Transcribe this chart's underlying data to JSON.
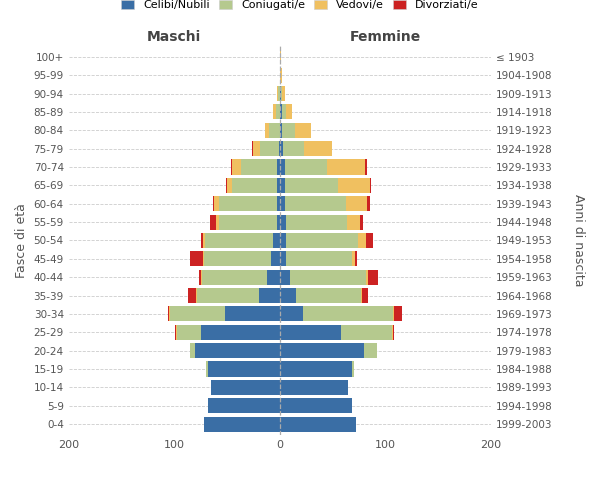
{
  "age_groups_bottom_to_top": [
    "0-4",
    "5-9",
    "10-14",
    "15-19",
    "20-24",
    "25-29",
    "30-34",
    "35-39",
    "40-44",
    "45-49",
    "50-54",
    "55-59",
    "60-64",
    "65-69",
    "70-74",
    "75-79",
    "80-84",
    "85-89",
    "90-94",
    "95-99",
    "100+"
  ],
  "birth_years_bottom_to_top": [
    "1999-2003",
    "1994-1998",
    "1989-1993",
    "1984-1988",
    "1979-1983",
    "1974-1978",
    "1969-1973",
    "1964-1968",
    "1959-1963",
    "1954-1958",
    "1949-1953",
    "1944-1948",
    "1939-1943",
    "1934-1938",
    "1929-1933",
    "1924-1928",
    "1919-1923",
    "1914-1918",
    "1909-1913",
    "1904-1908",
    "≤ 1903"
  ],
  "male_celibi": [
    72,
    68,
    65,
    68,
    80,
    75,
    52,
    20,
    12,
    8,
    6,
    3,
    3,
    3,
    3,
    1,
    0,
    0,
    0,
    0,
    0
  ],
  "male_coniugati": [
    0,
    0,
    0,
    2,
    5,
    22,
    52,
    58,
    62,
    64,
    65,
    55,
    55,
    42,
    34,
    18,
    10,
    4,
    2,
    0,
    0
  ],
  "male_vedovi": [
    0,
    0,
    0,
    0,
    0,
    1,
    1,
    1,
    1,
    1,
    2,
    2,
    4,
    5,
    8,
    6,
    4,
    2,
    1,
    0,
    0
  ],
  "male_divorziati": [
    0,
    0,
    0,
    0,
    0,
    1,
    1,
    8,
    2,
    12,
    2,
    6,
    1,
    1,
    1,
    1,
    0,
    0,
    0,
    0,
    0
  ],
  "female_nubili": [
    72,
    68,
    65,
    68,
    80,
    58,
    22,
    15,
    10,
    6,
    6,
    6,
    5,
    5,
    5,
    3,
    2,
    2,
    1,
    0,
    0
  ],
  "female_coniugate": [
    0,
    0,
    0,
    2,
    12,
    48,
    85,
    62,
    72,
    62,
    68,
    58,
    58,
    50,
    40,
    20,
    12,
    4,
    1,
    0,
    0
  ],
  "female_vedove": [
    0,
    0,
    0,
    0,
    0,
    1,
    1,
    1,
    2,
    3,
    8,
    12,
    20,
    30,
    36,
    26,
    16,
    6,
    3,
    2,
    1
  ],
  "female_divorziate": [
    0,
    0,
    0,
    0,
    0,
    1,
    8,
    6,
    9,
    2,
    6,
    3,
    2,
    1,
    2,
    0,
    0,
    0,
    0,
    0,
    0
  ],
  "color_celibi": "#3a6ea5",
  "color_coniugati": "#b5c98e",
  "color_vedovi": "#f0c060",
  "color_divorziati": "#cc2222",
  "xlim": 200,
  "legend_labels": [
    "Celibi/Nubili",
    "Coniugati/e",
    "Vedovi/e",
    "Divorziati/e"
  ],
  "maschi_label": "Maschi",
  "femmine_label": "Femmine",
  "ylabel_left": "Fasce di età",
  "ylabel_right": "Anni di nascita",
  "bg_color": "#ffffff",
  "grid_color": "#cccccc",
  "text_color": "#555555",
  "maschi_color": "#444444",
  "femmine_color": "#444444"
}
